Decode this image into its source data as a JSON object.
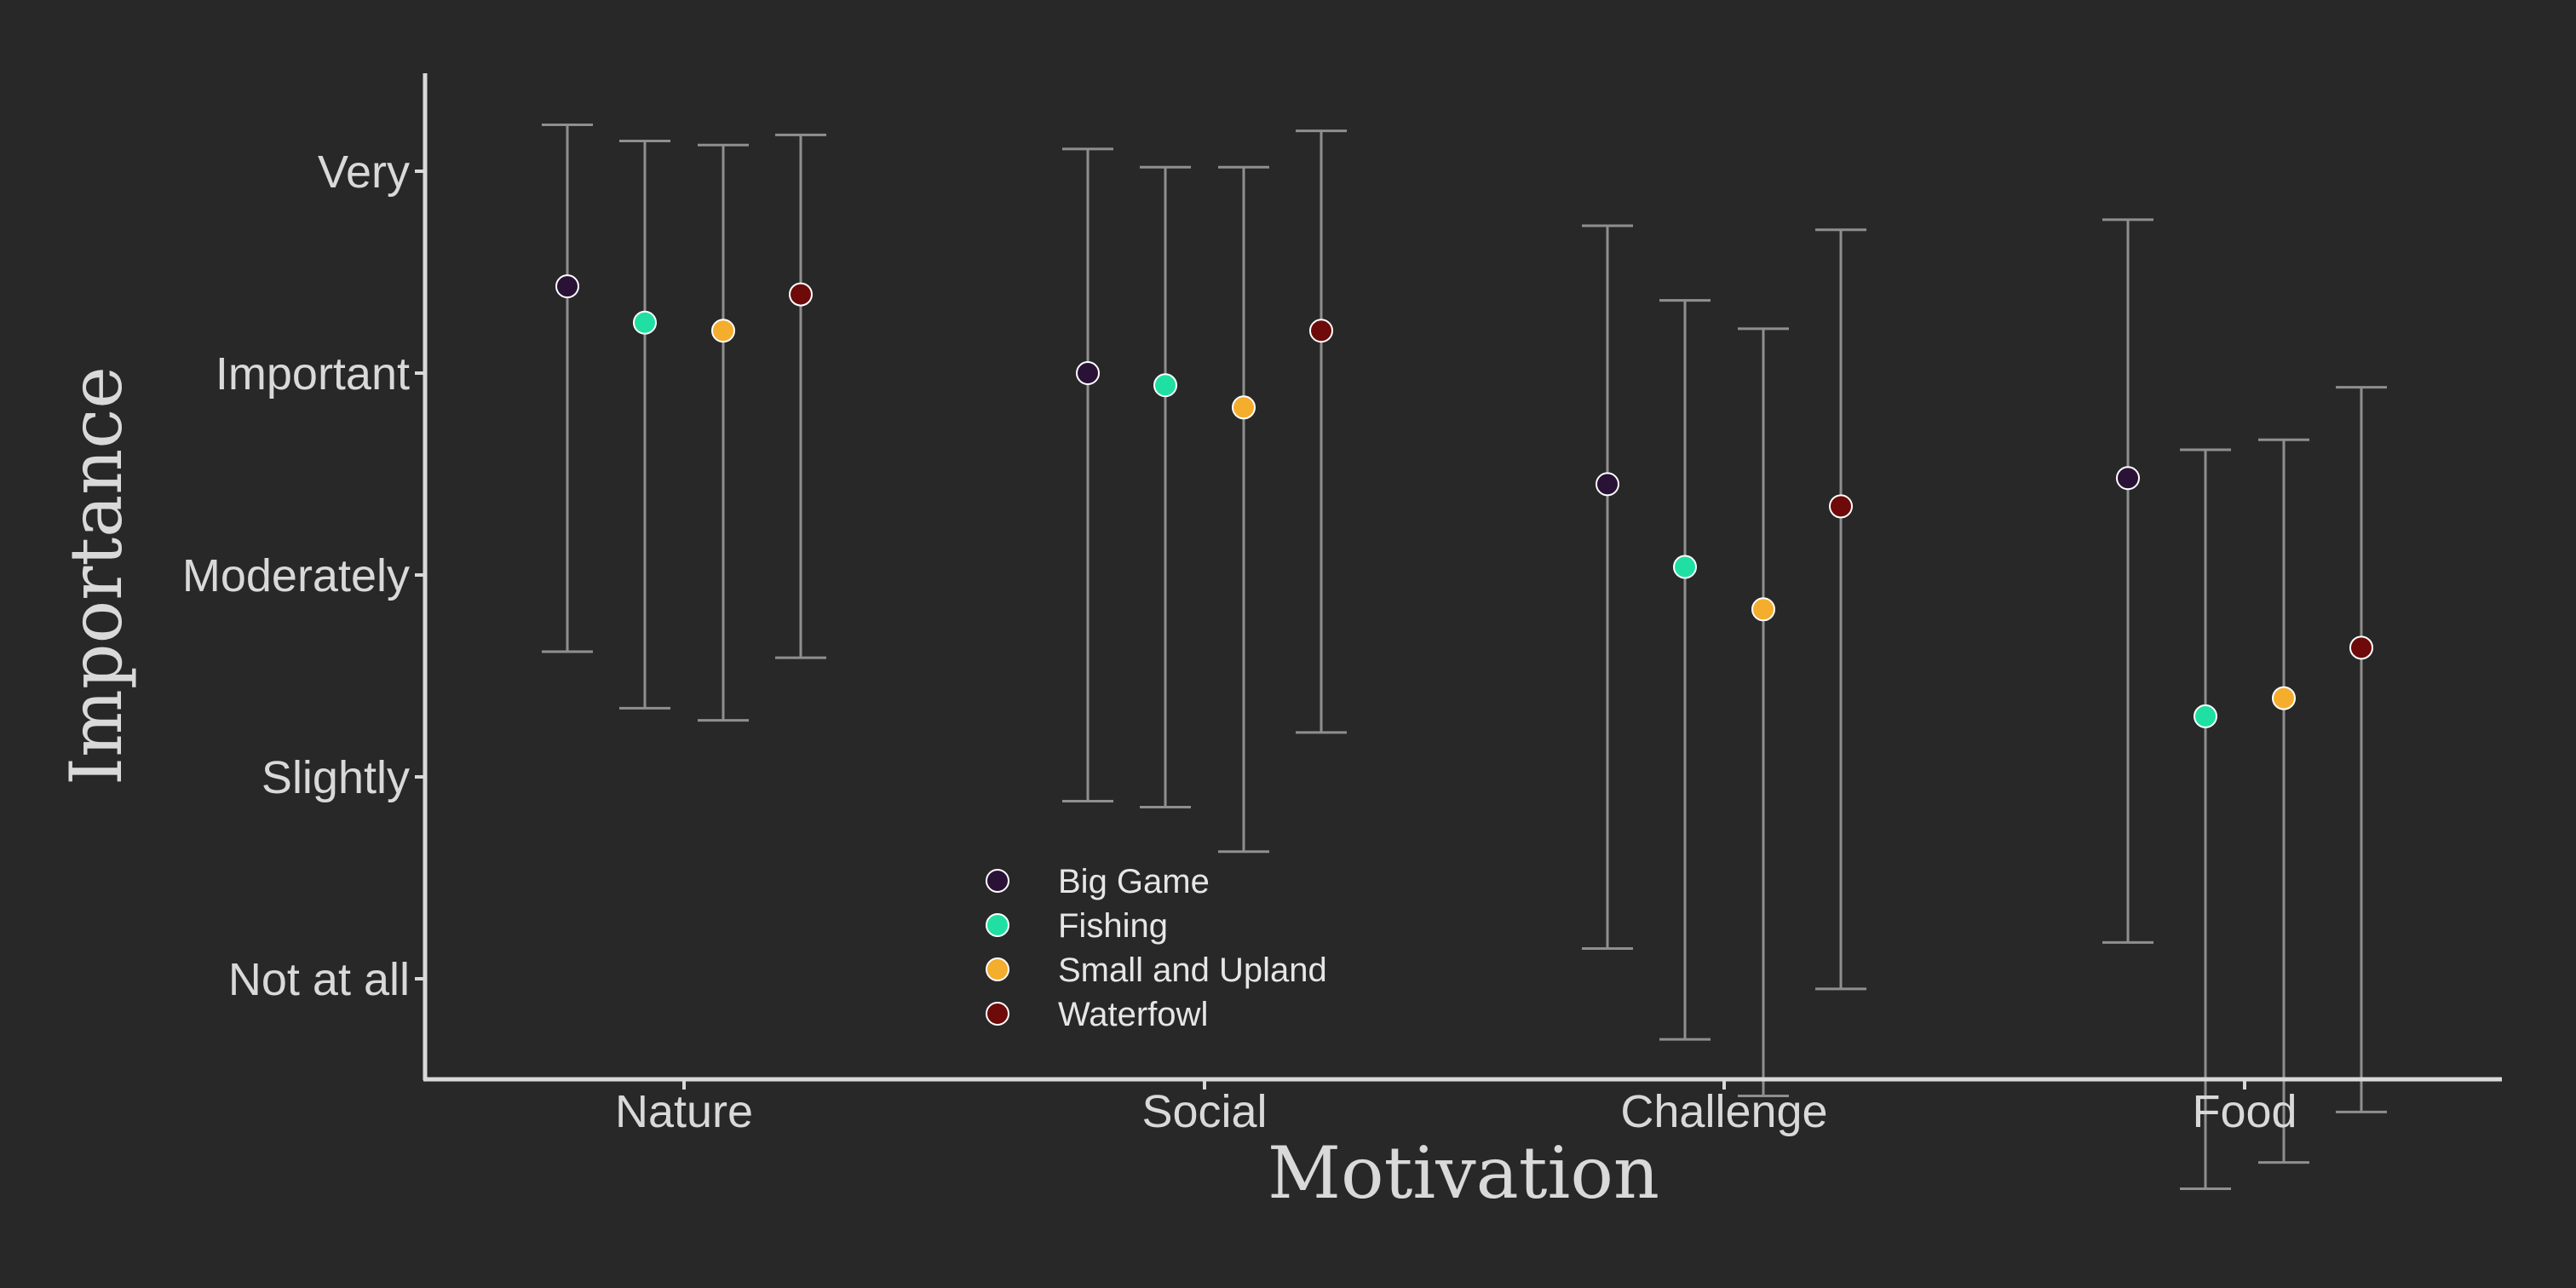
{
  "chart_data": {
    "type": "scatter",
    "title": "",
    "xlabel": "Motivation",
    "ylabel": "Importance",
    "categories": [
      "Nature",
      "Social",
      "Challenge",
      "Food"
    ],
    "y_ticks": [
      {
        "value": 1,
        "label": "Not at all"
      },
      {
        "value": 2,
        "label": "Slightly"
      },
      {
        "value": 3,
        "label": "Moderately"
      },
      {
        "value": 4,
        "label": "Important"
      },
      {
        "value": 5,
        "label": "Very"
      }
    ],
    "ylim": [
      0.5,
      5.5
    ],
    "grid": false,
    "legend_position": "bottom-left",
    "series": [
      {
        "name": "Big Game",
        "color": "#2a1236",
        "mean": [
          4.43,
          4.0,
          3.45,
          3.48
        ],
        "lower": [
          2.62,
          1.88,
          1.15,
          1.18
        ],
        "upper": [
          5.23,
          5.11,
          4.73,
          4.76
        ]
      },
      {
        "name": "Fishing",
        "color": "#1fe0a2",
        "mean": [
          4.25,
          3.94,
          3.04,
          2.3
        ],
        "lower": [
          2.34,
          1.85,
          0.7,
          -0.04
        ],
        "upper": [
          5.15,
          5.02,
          4.36,
          3.62
        ]
      },
      {
        "name": "Small and Upland",
        "color": "#f5ad2d",
        "mean": [
          4.21,
          3.83,
          2.83,
          2.39
        ],
        "lower": [
          2.28,
          1.63,
          0.42,
          0.09
        ],
        "upper": [
          5.13,
          5.02,
          4.22,
          3.67
        ]
      },
      {
        "name": "Waterfowl",
        "color": "#6e0a0a",
        "mean": [
          4.39,
          4.21,
          3.34,
          2.64
        ],
        "lower": [
          2.59,
          2.22,
          0.95,
          0.34
        ],
        "upper": [
          5.18,
          5.2,
          4.71,
          3.93
        ]
      }
    ]
  }
}
